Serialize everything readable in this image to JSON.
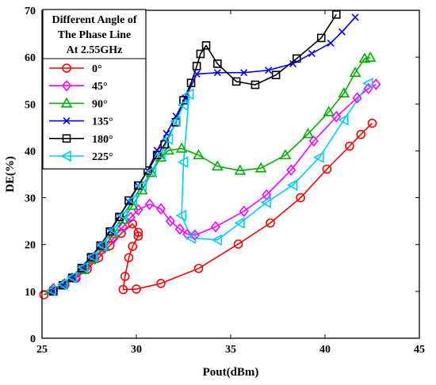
{
  "chart_data": {
    "type": "line",
    "title": "",
    "xlabel": "Pout(dBm)",
    "ylabel": "DE(%)",
    "xlim": [
      25,
      45
    ],
    "ylim": [
      0,
      70
    ],
    "xticks": [
      "25",
      "30",
      "35",
      "40",
      "45"
    ],
    "yticks": [
      "0",
      "10",
      "20",
      "30",
      "40",
      "50",
      "60",
      "70"
    ],
    "grid": false,
    "legend": {
      "placement": "top-left",
      "title_lines": [
        "Different Angle of",
        "The Phase Line",
        "At 2.55GHz"
      ]
    },
    "series": [
      {
        "name": "0°",
        "color": "#ff0000",
        "marker": "circle",
        "points": [
          [
            25.1,
            9.3
          ],
          [
            25.6,
            10.2
          ],
          [
            26.2,
            11.4
          ],
          [
            26.8,
            12.8
          ],
          [
            27.4,
            14.8
          ],
          [
            28.0,
            17.2
          ],
          [
            28.6,
            19.8
          ],
          [
            29.2,
            22.4
          ],
          [
            29.8,
            24.4
          ],
          [
            30.1,
            22.6
          ],
          [
            30.1,
            21.8
          ],
          [
            29.8,
            19.6
          ],
          [
            29.6,
            17.2
          ],
          [
            29.4,
            13.2
          ],
          [
            29.3,
            10.4
          ],
          [
            30.0,
            10.5
          ],
          [
            31.3,
            11.7
          ],
          [
            33.3,
            14.9
          ],
          [
            35.4,
            20.1
          ],
          [
            37.1,
            24.6
          ],
          [
            38.7,
            30.0
          ],
          [
            40.1,
            36.1
          ],
          [
            41.3,
            41.0
          ],
          [
            41.9,
            43.5
          ],
          [
            42.5,
            45.9
          ]
        ]
      },
      {
        "name": "45°",
        "color": "#ff00ff",
        "marker": "diamond",
        "points": [
          [
            25.6,
            10.6
          ],
          [
            26.2,
            11.6
          ],
          [
            26.8,
            13.0
          ],
          [
            27.3,
            14.8
          ],
          [
            27.8,
            16.9
          ],
          [
            28.3,
            19.2
          ],
          [
            28.8,
            21.3
          ],
          [
            29.3,
            23.8
          ],
          [
            29.7,
            25.8
          ],
          [
            30.1,
            27.4
          ],
          [
            30.7,
            28.6
          ],
          [
            31.3,
            27.6
          ],
          [
            31.8,
            25.0
          ],
          [
            32.3,
            23.3
          ],
          [
            32.7,
            22.2
          ],
          [
            33.1,
            22.0
          ],
          [
            34.2,
            23.8
          ],
          [
            35.7,
            27.1
          ],
          [
            36.9,
            30.6
          ],
          [
            38.2,
            35.9
          ],
          [
            39.4,
            42.1
          ],
          [
            40.6,
            47.3
          ],
          [
            41.7,
            51.3
          ],
          [
            42.3,
            53.3
          ],
          [
            42.7,
            54.2
          ]
        ]
      },
      {
        "name": "90°",
        "color": "#00b000",
        "marker": "triangle-up",
        "points": [
          [
            25.5,
            10.2
          ],
          [
            26.1,
            11.4
          ],
          [
            26.6,
            12.8
          ],
          [
            27.2,
            14.6
          ],
          [
            27.7,
            16.9
          ],
          [
            28.3,
            19.5
          ],
          [
            28.8,
            22.3
          ],
          [
            29.3,
            25.3
          ],
          [
            29.8,
            28.3
          ],
          [
            30.3,
            31.6
          ],
          [
            30.8,
            35.3
          ],
          [
            31.3,
            38.6
          ],
          [
            31.7,
            40.1
          ],
          [
            32.4,
            40.5
          ],
          [
            33.3,
            39.1
          ],
          [
            34.3,
            36.7
          ],
          [
            35.5,
            35.8
          ],
          [
            36.6,
            36.3
          ],
          [
            37.9,
            39.1
          ],
          [
            39.1,
            43.6
          ],
          [
            40.2,
            48.3
          ],
          [
            41.0,
            52.3
          ],
          [
            41.6,
            56.7
          ],
          [
            42.1,
            59.7
          ],
          [
            42.4,
            59.9
          ]
        ]
      },
      {
        "name": "135°",
        "color": "#0000ff",
        "marker": "x",
        "points": [
          [
            25.6,
            10.0
          ],
          [
            26.1,
            11.4
          ],
          [
            26.6,
            13.1
          ],
          [
            27.1,
            15.2
          ],
          [
            27.6,
            17.4
          ],
          [
            28.1,
            19.9
          ],
          [
            28.6,
            22.9
          ],
          [
            29.1,
            26.1
          ],
          [
            29.6,
            29.1
          ],
          [
            30.1,
            32.5
          ],
          [
            30.6,
            35.8
          ],
          [
            31.1,
            40.1
          ],
          [
            31.6,
            43.7
          ],
          [
            32.1,
            47.4
          ],
          [
            32.6,
            51.3
          ],
          [
            33.2,
            56.4
          ],
          [
            34.3,
            56.7
          ],
          [
            35.7,
            56.7
          ],
          [
            37.0,
            57.2
          ],
          [
            38.3,
            58.6
          ],
          [
            39.3,
            60.8
          ],
          [
            40.3,
            63.0
          ],
          [
            40.9,
            65.4
          ],
          [
            41.6,
            68.5
          ]
        ]
      },
      {
        "name": "180°",
        "color": "#000000",
        "marker": "square",
        "points": [
          [
            25.6,
            10.0
          ],
          [
            26.1,
            11.3
          ],
          [
            26.6,
            12.9
          ],
          [
            27.1,
            15.0
          ],
          [
            27.6,
            17.3
          ],
          [
            28.1,
            19.8
          ],
          [
            28.6,
            22.8
          ],
          [
            29.1,
            25.9
          ],
          [
            29.6,
            29.4
          ],
          [
            30.1,
            32.6
          ],
          [
            30.6,
            35.8
          ],
          [
            31.1,
            39.1
          ],
          [
            31.5,
            41.4
          ],
          [
            32.1,
            46.1
          ],
          [
            32.5,
            50.8
          ],
          [
            32.9,
            54.5
          ],
          [
            33.2,
            58.1
          ],
          [
            33.4,
            60.7
          ],
          [
            33.7,
            62.5
          ],
          [
            34.3,
            58.6
          ],
          [
            35.3,
            54.8
          ],
          [
            36.3,
            54.1
          ],
          [
            37.4,
            56.2
          ],
          [
            38.5,
            59.7
          ],
          [
            39.8,
            64.1
          ],
          [
            40.6,
            69.1
          ]
        ]
      },
      {
        "name": "225°",
        "color": "#00ccff",
        "marker": "triangle-left",
        "points": [
          [
            25.5,
            10.2
          ],
          [
            26.1,
            11.5
          ],
          [
            26.6,
            13.0
          ],
          [
            27.2,
            15.1
          ],
          [
            27.7,
            17.4
          ],
          [
            28.2,
            19.9
          ],
          [
            28.8,
            23.1
          ],
          [
            29.3,
            26.2
          ],
          [
            29.8,
            29.5
          ],
          [
            30.3,
            32.6
          ],
          [
            30.8,
            35.6
          ],
          [
            31.3,
            39.2
          ],
          [
            31.7,
            42.5
          ],
          [
            32.1,
            46.3
          ],
          [
            32.5,
            49.8
          ],
          [
            32.8,
            52.1
          ],
          [
            32.5,
            37.6
          ],
          [
            32.4,
            26.2
          ],
          [
            32.9,
            21.4
          ],
          [
            34.3,
            21.0
          ],
          [
            35.5,
            24.6
          ],
          [
            36.9,
            29.0
          ],
          [
            38.3,
            32.7
          ],
          [
            39.7,
            38.6
          ],
          [
            41.0,
            46.6
          ],
          [
            42.3,
            54.4
          ]
        ]
      }
    ]
  }
}
